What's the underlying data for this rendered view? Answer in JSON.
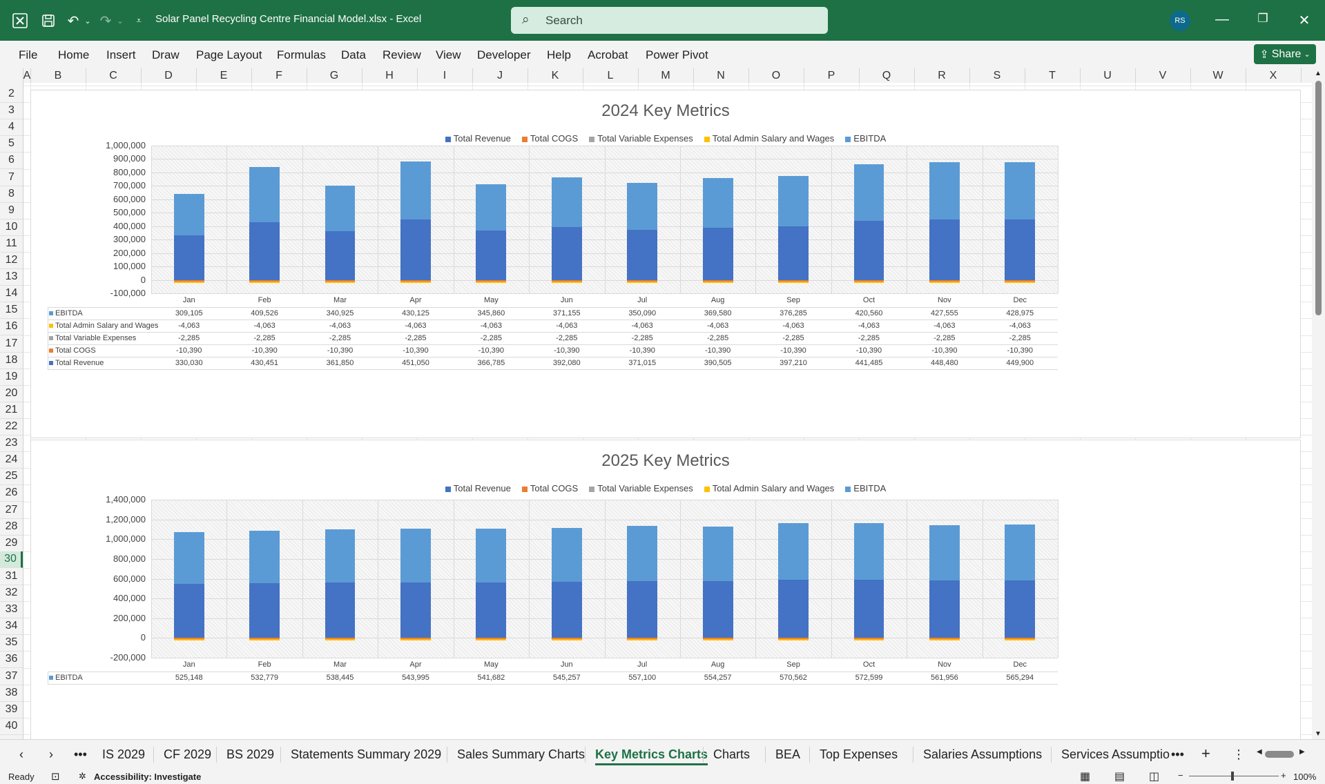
{
  "window": {
    "doc_title": "Solar Panel Recycling Centre Financial Model.xlsx  -  Excel",
    "search_placeholder": "Search",
    "user_initials": "RS"
  },
  "ribbon": {
    "tabs": [
      "File",
      "Home",
      "Insert",
      "Draw",
      "Page Layout",
      "Formulas",
      "Data",
      "Review",
      "View",
      "Developer",
      "Help",
      "Acrobat",
      "Power Pivot"
    ],
    "share_label": "Share"
  },
  "columns": [
    "A",
    "B",
    "C",
    "D",
    "E",
    "F",
    "G",
    "H",
    "I",
    "J",
    "K",
    "L",
    "M",
    "N",
    "O",
    "P",
    "Q",
    "R",
    "S",
    "T",
    "U",
    "V",
    "W",
    "X"
  ],
  "rows": [
    "2",
    "3",
    "4",
    "5",
    "6",
    "7",
    "8",
    "9",
    "10",
    "11",
    "12",
    "13",
    "14",
    "15",
    "16",
    "17",
    "18",
    "19",
    "20",
    "21",
    "22",
    "23",
    "24",
    "25",
    "26",
    "27",
    "28",
    "29",
    "30",
    "31",
    "32",
    "33",
    "34",
    "35",
    "36",
    "37",
    "38",
    "39",
    "40"
  ],
  "selected_row": "30",
  "chart_data": [
    {
      "type": "bar",
      "title": "2024 Key Metrics",
      "stacked": true,
      "legend": [
        "Total Revenue",
        "Total COGS",
        "Total Variable Expenses",
        "Total Admin Salary and Wages",
        "EBITDA"
      ],
      "legend_position": "top",
      "ylim": [
        -100000,
        1000000
      ],
      "y_ticks": [
        "1,000,000",
        "900,000",
        "800,000",
        "700,000",
        "600,000",
        "500,000",
        "400,000",
        "300,000",
        "200,000",
        "100,000",
        "0",
        "-100,000"
      ],
      "categories": [
        "Jan",
        "Feb",
        "Mar",
        "Apr",
        "May",
        "Jun",
        "Jul",
        "Aug",
        "Sep",
        "Oct",
        "Nov",
        "Dec"
      ],
      "series": [
        {
          "name": "Total Revenue",
          "color": "#4472c4",
          "values": [
            330030,
            430451,
            361850,
            451050,
            366785,
            392080,
            371015,
            390505,
            397210,
            441485,
            448480,
            449900
          ],
          "labels": [
            "330,030",
            "430,451",
            "361,850",
            "451,050",
            "366,785",
            "392,080",
            "371,015",
            "390,505",
            "397,210",
            "441,485",
            "448,480",
            "449,900"
          ]
        },
        {
          "name": "Total COGS",
          "color": "#ed7d31",
          "values": [
            -10390,
            -10390,
            -10390,
            -10390,
            -10390,
            -10390,
            -10390,
            -10390,
            -10390,
            -10390,
            -10390,
            -10390
          ],
          "labels": [
            "-10,390",
            "-10,390",
            "-10,390",
            "-10,390",
            "-10,390",
            "-10,390",
            "-10,390",
            "-10,390",
            "-10,390",
            "-10,390",
            "-10,390",
            "-10,390"
          ]
        },
        {
          "name": "Total Variable Expenses",
          "color": "#a5a5a5",
          "values": [
            -2285,
            -2285,
            -2285,
            -2285,
            -2285,
            -2285,
            -2285,
            -2285,
            -2285,
            -2285,
            -2285,
            -2285
          ],
          "labels": [
            "-2,285",
            "-2,285",
            "-2,285",
            "-2,285",
            "-2,285",
            "-2,285",
            "-2,285",
            "-2,285",
            "-2,285",
            "-2,285",
            "-2,285",
            "-2,285"
          ]
        },
        {
          "name": "Total Admin Salary and Wages",
          "color": "#ffc000",
          "values": [
            -4063,
            -4063,
            -4063,
            -4063,
            -4063,
            -4063,
            -4063,
            -4063,
            -4063,
            -4063,
            -4063,
            -4063
          ],
          "labels": [
            "-4,063",
            "-4,063",
            "-4,063",
            "-4,063",
            "-4,063",
            "-4,063",
            "-4,063",
            "-4,063",
            "-4,063",
            "-4,063",
            "-4,063",
            "-4,063"
          ]
        },
        {
          "name": "EBITDA",
          "color": "#5b9bd5",
          "values": [
            309105,
            409526,
            340925,
            430125,
            345860,
            371155,
            350090,
            369580,
            376285,
            420560,
            427555,
            428975
          ],
          "labels": [
            "309,105",
            "409,526",
            "340,925",
            "430,125",
            "345,860",
            "371,155",
            "350,090",
            "369,580",
            "376,285",
            "420,560",
            "427,555",
            "428,975"
          ]
        }
      ],
      "table_row_order": [
        "EBITDA",
        "Total Admin Salary and Wages",
        "Total Variable Expenses",
        "Total COGS",
        "Total Revenue"
      ]
    },
    {
      "type": "bar",
      "title": "2025 Key Metrics",
      "stacked": true,
      "legend": [
        "Total Revenue",
        "Total COGS",
        "Total Variable Expenses",
        "Total Admin Salary and Wages",
        "EBITDA"
      ],
      "legend_position": "top",
      "ylim": [
        -200000,
        1400000
      ],
      "y_ticks": [
        "1,400,000",
        "1,200,000",
        "1,000,000",
        "800,000",
        "600,000",
        "400,000",
        "200,000",
        "0",
        "-200,000"
      ],
      "categories": [
        "Jan",
        "Feb",
        "Mar",
        "Apr",
        "May",
        "Jun",
        "Jul",
        "Aug",
        "Sep",
        "Oct",
        "Nov",
        "Dec"
      ],
      "series": [
        {
          "name": "Total Revenue",
          "color": "#4472c4",
          "values": [
            545000,
            553000,
            559000,
            564000,
            562000,
            566000,
            578000,
            575000,
            591000,
            593000,
            582000,
            586000
          ]
        },
        {
          "name": "Total COGS",
          "color": "#ed7d31",
          "values": [
            -10390,
            -10390,
            -10390,
            -10390,
            -10390,
            -10390,
            -10390,
            -10390,
            -10390,
            -10390,
            -10390,
            -10390
          ]
        },
        {
          "name": "Total Variable Expenses",
          "color": "#a5a5a5",
          "values": [
            -2285,
            -2285,
            -2285,
            -2285,
            -2285,
            -2285,
            -2285,
            -2285,
            -2285,
            -2285,
            -2285,
            -2285
          ]
        },
        {
          "name": "Total Admin Salary and Wages",
          "color": "#ffc000",
          "values": [
            -4063,
            -4063,
            -4063,
            -4063,
            -4063,
            -4063,
            -4063,
            -4063,
            -4063,
            -4063,
            -4063,
            -4063
          ]
        },
        {
          "name": "EBITDA",
          "color": "#5b9bd5",
          "values": [
            525148,
            532779,
            538445,
            543995,
            541682,
            545257,
            557100,
            554257,
            570562,
            572599,
            561956,
            565294
          ],
          "labels": [
            "525,148",
            "532,779",
            "538,445",
            "543,995",
            "541,682",
            "545,257",
            "557,100",
            "554,257",
            "570,562",
            "572,599",
            "561,956",
            "565,294"
          ]
        }
      ],
      "table_row_order": [
        "EBITDA"
      ]
    }
  ],
  "sheet_tabs": [
    "IS 2029",
    "CF 2029",
    "BS 2029",
    "Statements Summary 2029",
    "Sales Summary Charts",
    "Key Metrics Charts",
    "Charts",
    "BEA",
    "Top Expenses",
    "Salaries Assumptions",
    "Services Assumptio"
  ],
  "active_tab": "Key Metrics Charts",
  "status": {
    "ready": "Ready",
    "accessibility": "Accessibility: Investigate",
    "zoom": "100%"
  }
}
